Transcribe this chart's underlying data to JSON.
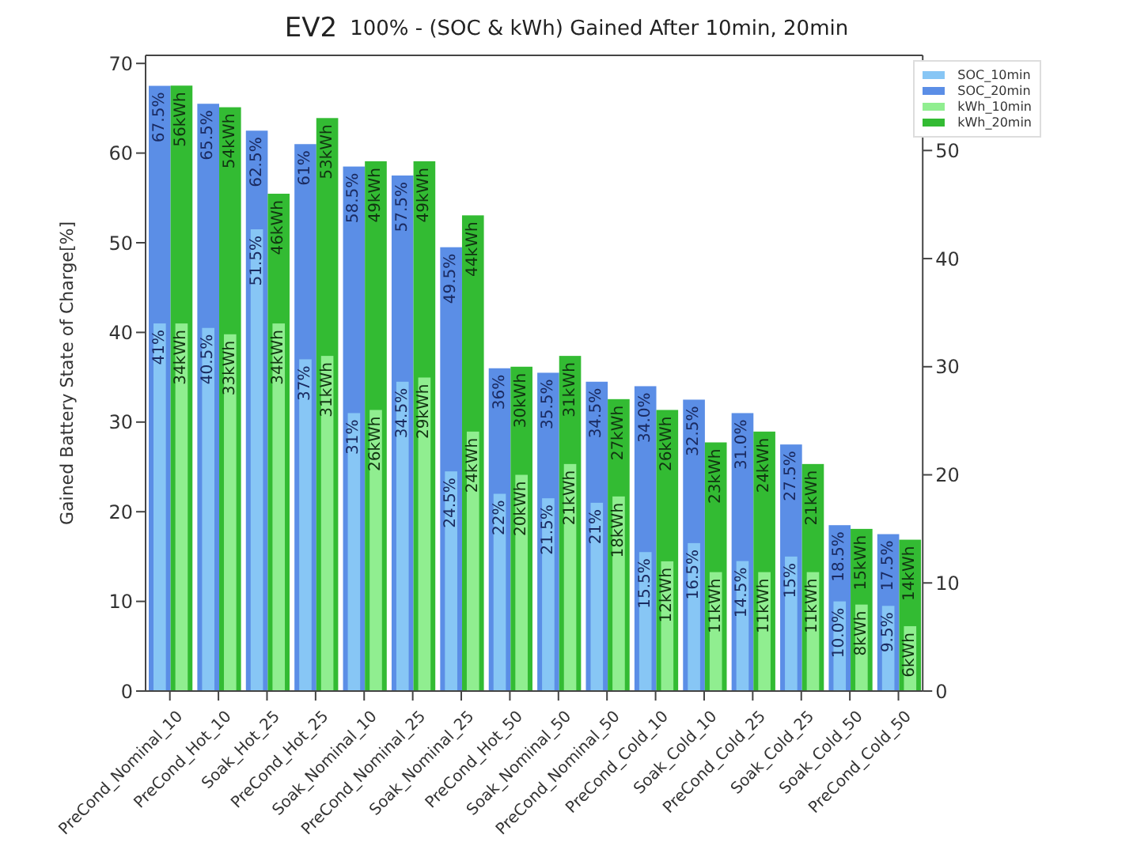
{
  "chart_data": {
    "type": "bar",
    "title": "100% - (SOC & kWh) Gained After 10min, 20min",
    "annotations": [
      "EV2"
    ],
    "ylabel": "Gained Battery State of Charge[%]",
    "categories": [
      "PreCond_Nominal_10",
      "PreCond_Hot_10",
      "Soak_Hot_25",
      "PreCond_Hot_25",
      "Soak_Nominal_10",
      "PreCond_Nominal_25",
      "Soak_Nominal_25",
      "PreCond_Hot_50",
      "Soak_Nominal_50",
      "PreCond_Nominal_50",
      "PreCond_Cold_10",
      "Soak_Cold_10",
      "PreCond_Cold_25",
      "Soak_Cold_25",
      "Soak_Cold_50",
      "PreCond_Cold_50"
    ],
    "series": [
      {
        "name": "SOC_10min",
        "color": "#87c6f5",
        "values": [
          41,
          40.5,
          51.5,
          37,
          31,
          34.5,
          24.5,
          22,
          21.5,
          21,
          15.5,
          16.5,
          14.5,
          15,
          10.0,
          9.5
        ],
        "value_labels": [
          "41%",
          "40.5%",
          "51.5%",
          "37%",
          "31%",
          "34.5%",
          "24.5%",
          "22%",
          "21.5%",
          "21%",
          "15.5%",
          "16.5%",
          "14.5%",
          "15%",
          "10.0%",
          "9.5%"
        ]
      },
      {
        "name": "SOC_20min",
        "color": "#5b8ee6",
        "values": [
          67.5,
          65.5,
          62.5,
          61,
          58.5,
          57.5,
          49.5,
          36,
          35.5,
          34.5,
          34.0,
          32.5,
          31.0,
          27.5,
          18.5,
          17.5
        ],
        "value_labels": [
          "67.5%",
          "65.5%",
          "62.5%",
          "61%",
          "58.5%",
          "57.5%",
          "49.5%",
          "36%",
          "35.5%",
          "34.5%",
          "34.0%",
          "32.5%",
          "31.0%",
          "27.5%",
          "18.5%",
          "17.5%"
        ]
      },
      {
        "name": "kWh_10min",
        "color": "#90ee90",
        "axis": "y2",
        "values": [
          34,
          33,
          34,
          31,
          26,
          29,
          24,
          20,
          21,
          18,
          12,
          11,
          11,
          11,
          8,
          6
        ],
        "value_labels": [
          "34kWh",
          "33kWh",
          "34kWh",
          "31kWh",
          "26kWh",
          "29kWh",
          "24kWh",
          "20kWh",
          "21kWh",
          "18kWh",
          "12kWh",
          "11kWh",
          "11kWh",
          "11kWh",
          "8kWh",
          "6kWh"
        ]
      },
      {
        "name": "kWh_20min",
        "color": "#33bb33",
        "axis": "y2",
        "values": [
          56,
          54,
          46,
          53,
          49,
          49,
          44,
          30,
          31,
          27,
          26,
          23,
          24,
          21,
          15,
          14
        ],
        "value_labels": [
          "56kWh",
          "54kWh",
          "46kWh",
          "53kWh",
          "49kWh",
          "49kWh",
          "44kWh",
          "30kWh",
          "31kWh",
          "27kWh",
          "26kWh",
          "23kWh",
          "24kWh",
          "21kWh",
          "15kWh",
          "14kWh"
        ]
      }
    ],
    "ylim": [
      0,
      70.9
    ],
    "yticks": [
      0,
      10,
      20,
      30,
      40,
      50,
      60,
      70
    ],
    "y2lim": [
      0,
      58.8
    ],
    "y2ticks": [
      0,
      10,
      20,
      30,
      40,
      50
    ],
    "legend": "top right"
  }
}
